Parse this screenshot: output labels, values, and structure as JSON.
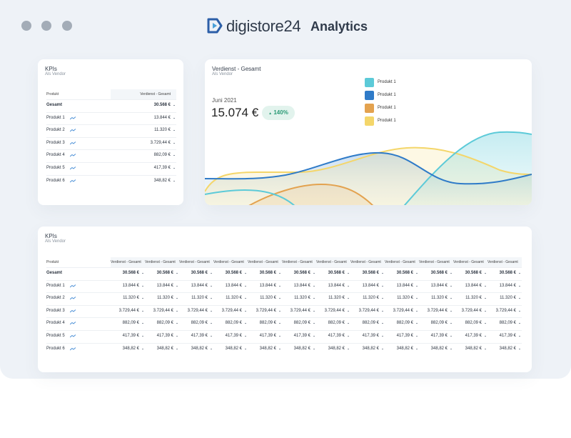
{
  "header": {
    "brand": "digistore24",
    "title": "Analytics"
  },
  "kpi_small": {
    "title": "KPIs",
    "subtitle": "Als Vendor",
    "columns": [
      "Produkt",
      "Verdienst - Gesamt"
    ],
    "rows": [
      [
        "Gesamt",
        "30.568 €"
      ],
      [
        "Produkt 1",
        "13.844 €"
      ],
      [
        "Produkt 2",
        "11.320 €"
      ],
      [
        "Produkt 3",
        "3.729,44 €"
      ],
      [
        "Produkt 4",
        "882,09 €"
      ],
      [
        "Produkt 5",
        "417,39 €"
      ],
      [
        "Produkt 6",
        "348,82 €"
      ]
    ]
  },
  "chart_panel": {
    "title": "Verdienst - Gesamt",
    "subtitle": "Als Vendor",
    "period": "Juni 2021",
    "amount": "15.074 €",
    "change": "140%",
    "legend": [
      {
        "label": "Produkt 1",
        "color": "#5ccad8"
      },
      {
        "label": "Produkt 1",
        "color": "#2f7bc8"
      },
      {
        "label": "Produkt 1",
        "color": "#e3a24f"
      },
      {
        "label": "Produkt 1",
        "color": "#f4d66a"
      }
    ]
  },
  "kpi_large": {
    "title": "KPIs",
    "subtitle": "Als Vendor",
    "columns": [
      "Produkt",
      "Verdienst - Gesamt",
      "Verdienst - Gesamt",
      "Verdienst - Gesamt",
      "Verdienst - Gesamt",
      "Verdienst - Gesamt",
      "Verdienst - Gesamt",
      "Verdienst - Gesamt",
      "Verdienst - Gesamt",
      "Verdienst - Gesamt",
      "Verdienst - Gesamt",
      "Verdienst - Gesamt",
      "Verdienst - Gesamt"
    ],
    "rows": [
      [
        "Gesamt",
        "30.568 €",
        "30.568 €",
        "30.568 €",
        "30.568 €",
        "30.568 €",
        "30.568 €",
        "30.568 €",
        "30.568 €",
        "30.568 €",
        "30.568 €",
        "30.568 €",
        "30.568 €"
      ],
      [
        "Produkt 1",
        "13.844 €",
        "13.844 €",
        "13.844 €",
        "13.844 €",
        "13.844 €",
        "13.844 €",
        "13.844 €",
        "13.844 €",
        "13.844 €",
        "13.844 €",
        "13.844 €",
        "13.844 €"
      ],
      [
        "Produkt 2",
        "11.320 €",
        "11.320 €",
        "11.320 €",
        "11.320 €",
        "11.320 €",
        "11.320 €",
        "11.320 €",
        "11.320 €",
        "11.320 €",
        "11.320 €",
        "11.320 €",
        "11.320 €"
      ],
      [
        "Produkt 3",
        "3.729,44 €",
        "3.729,44 €",
        "3.729,44 €",
        "3.729,44 €",
        "3.729,44 €",
        "3.729,44 €",
        "3.729,44 €",
        "3.729,44 €",
        "3.729,44 €",
        "3.729,44 €",
        "3.729,44 €",
        "3.729,44 €"
      ],
      [
        "Produkt 4",
        "882,09 €",
        "882,09 €",
        "882,09 €",
        "882,09 €",
        "882,09 €",
        "882,09 €",
        "882,09 €",
        "882,09 €",
        "882,09 €",
        "882,09 €",
        "882,09 €",
        "882,09 €"
      ],
      [
        "Produkt 5",
        "417,39 €",
        "417,39 €",
        "417,39 €",
        "417,39 €",
        "417,39 €",
        "417,39 €",
        "417,39 €",
        "417,39 €",
        "417,39 €",
        "417,39 €",
        "417,39 €",
        "417,39 €"
      ],
      [
        "Produkt 6",
        "348,82 €",
        "348,82 €",
        "348,82 €",
        "348,82 €",
        "348,82 €",
        "348,82 €",
        "348,82 €",
        "348,82 €",
        "348,82 €",
        "348,82 €",
        "348,82 €",
        "348,82 €"
      ]
    ]
  }
}
